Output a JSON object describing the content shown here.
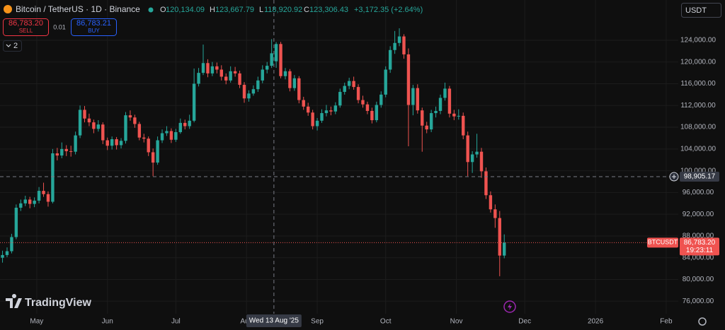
{
  "chart_data": {
    "type": "candlestick",
    "title": "Bitcoin / TetherUS · 1D · Binance",
    "legend": {
      "o_label": "O",
      "o": "120,134.09",
      "h_label": "H",
      "h": "123,667.79",
      "l_label": "L",
      "l": "118,920.92",
      "c_label": "C",
      "c": "123,306.43",
      "change": "+3,172.35 (+2.64%)"
    },
    "up_color": "#26a69a",
    "down_color": "#ef5350",
    "ylim": [
      73700,
      131400
    ],
    "yticks": [
      {
        "value": 76000,
        "label": "76,000.00"
      },
      {
        "value": 80000,
        "label": "80,000.00"
      },
      {
        "value": 84000,
        "label": "84,000.00"
      },
      {
        "value": 88000,
        "label": "88,000.00"
      },
      {
        "value": 92000,
        "label": "92,000.00"
      },
      {
        "value": 96000,
        "label": "96,000.00"
      },
      {
        "value": 100000,
        "label": "100,000.00"
      },
      {
        "value": 104000,
        "label": "104,000.00"
      },
      {
        "value": 108000,
        "label": "108,000.00"
      },
      {
        "value": 112000,
        "label": "112,000.00"
      },
      {
        "value": 116000,
        "label": "116,000.00"
      },
      {
        "value": 120000,
        "label": "120,000.00"
      },
      {
        "value": 124000,
        "label": "124,000.00"
      }
    ],
    "xlim": [
      -16.1,
      281.3
    ],
    "xticks": [
      {
        "value": 0,
        "label": "May"
      },
      {
        "value": 31,
        "label": "Jun"
      },
      {
        "value": 61,
        "label": "Jul"
      },
      {
        "value": 92,
        "label": "Aug"
      },
      {
        "value": 123,
        "label": "Sep"
      },
      {
        "value": 153,
        "label": "Oct"
      },
      {
        "value": 184,
        "label": "Nov"
      },
      {
        "value": 214,
        "label": "Dec"
      },
      {
        "value": 245,
        "label": "2026"
      },
      {
        "value": 276,
        "label": "Feb"
      }
    ],
    "x": [
      -15,
      -13,
      -11,
      -9,
      -7,
      -5,
      -3,
      -1,
      1,
      3,
      5,
      7,
      9,
      11,
      13,
      15,
      17,
      19,
      21,
      23,
      25,
      27,
      29,
      31,
      33,
      35,
      37,
      39,
      41,
      43,
      45,
      47,
      49,
      51,
      53,
      55,
      57,
      59,
      61,
      63,
      65,
      67,
      69,
      71,
      73,
      75,
      77,
      79,
      81,
      83,
      85,
      87,
      89,
      91,
      93,
      95,
      97,
      99,
      101,
      103,
      105,
      107,
      109,
      111,
      113,
      115,
      117,
      119,
      121,
      123,
      125,
      127,
      129,
      131,
      133,
      135,
      137,
      139,
      141,
      143,
      145,
      147,
      149,
      151,
      153,
      155,
      157,
      159,
      161,
      163,
      165,
      167,
      169,
      171,
      173,
      175,
      177,
      179,
      181,
      183,
      185,
      187,
      189,
      191,
      193,
      195,
      197,
      199,
      201,
      203,
      205
    ],
    "ohlc": [
      [
        84000,
        85300,
        83100,
        84500
      ],
      [
        84500,
        85900,
        84100,
        85200
      ],
      [
        85200,
        88400,
        84800,
        87800
      ],
      [
        87800,
        93800,
        87400,
        93200
      ],
      [
        93200,
        94700,
        92600,
        94000
      ],
      [
        94000,
        95400,
        93500,
        94700
      ],
      [
        94700,
        95200,
        93100,
        93900
      ],
      [
        93900,
        95100,
        93300,
        94500
      ],
      [
        94500,
        97000,
        94000,
        96300
      ],
      [
        96300,
        97800,
        95200,
        95700
      ],
      [
        95700,
        96200,
        93400,
        94300
      ],
      [
        94300,
        104000,
        94000,
        103200
      ],
      [
        103200,
        104200,
        101900,
        102800
      ],
      [
        102800,
        105200,
        102300,
        104000
      ],
      [
        104000,
        104700,
        102700,
        103600
      ],
      [
        103600,
        104600,
        102600,
        103500
      ],
      [
        103500,
        107200,
        103000,
        106500
      ],
      [
        106500,
        112000,
        106000,
        111200
      ],
      [
        111200,
        111900,
        108900,
        109600
      ],
      [
        109600,
        110500,
        108200,
        108900
      ],
      [
        108900,
        109400,
        106900,
        107700
      ],
      [
        107700,
        109300,
        107200,
        108500
      ],
      [
        108500,
        108900,
        104900,
        105600
      ],
      [
        105600,
        106100,
        103800,
        104600
      ],
      [
        104600,
        106300,
        103900,
        105800
      ],
      [
        105800,
        106200,
        103900,
        104700
      ],
      [
        104700,
        106000,
        104100,
        105500
      ],
      [
        105500,
        110800,
        105000,
        110200
      ],
      [
        110200,
        111100,
        109200,
        109800
      ],
      [
        109800,
        110300,
        107900,
        108600
      ],
      [
        108600,
        109000,
        105600,
        106100
      ],
      [
        106100,
        106800,
        105200,
        105900
      ],
      [
        105900,
        106300,
        102700,
        103400
      ],
      [
        103400,
        104100,
        99000,
        101500
      ],
      [
        101500,
        106300,
        101100,
        105600
      ],
      [
        105600,
        107600,
        105100,
        106900
      ],
      [
        106900,
        108200,
        106400,
        107300
      ],
      [
        107300,
        107800,
        105100,
        105700
      ],
      [
        105700,
        107700,
        105300,
        107100
      ],
      [
        107100,
        109600,
        106800,
        108800
      ],
      [
        108800,
        109400,
        107600,
        108200
      ],
      [
        108200,
        110300,
        107700,
        109200
      ],
      [
        109200,
        118800,
        108900,
        116000
      ],
      [
        116000,
        118900,
        115500,
        118000
      ],
      [
        118000,
        123200,
        117600,
        119800
      ],
      [
        119800,
        120500,
        117200,
        117900
      ],
      [
        117900,
        120000,
        117400,
        119200
      ],
      [
        119200,
        119900,
        117900,
        118600
      ],
      [
        118600,
        119400,
        116600,
        117300
      ],
      [
        117300,
        117900,
        115900,
        116600
      ],
      [
        116600,
        119200,
        116200,
        118300
      ],
      [
        118300,
        119100,
        117300,
        117900
      ],
      [
        117900,
        118400,
        115200,
        115800
      ],
      [
        115800,
        116300,
        112500,
        113300
      ],
      [
        113300,
        114800,
        112700,
        114200
      ],
      [
        114200,
        115700,
        113800,
        115000
      ],
      [
        115000,
        117300,
        114500,
        116600
      ],
      [
        116600,
        119400,
        116100,
        118600
      ],
      [
        118600,
        120000,
        117900,
        119300
      ],
      [
        119300,
        124200,
        118900,
        121600
      ],
      [
        120134.09,
        123667.79,
        118920.92,
        123306.43
      ],
      [
        123306.43,
        123700,
        117000,
        117400
      ],
      [
        117400,
        118900,
        116800,
        118300
      ],
      [
        118300,
        118700,
        114600,
        115200
      ],
      [
        115200,
        117600,
        114700,
        117000
      ],
      [
        117000,
        117400,
        112400,
        113000
      ],
      [
        113000,
        113600,
        111200,
        111800
      ],
      [
        111800,
        112500,
        110100,
        110700
      ],
      [
        110700,
        111200,
        107600,
        108200
      ],
      [
        108200,
        109700,
        107400,
        109200
      ],
      [
        109200,
        111300,
        108800,
        110600
      ],
      [
        110600,
        112100,
        110000,
        111100
      ],
      [
        111100,
        111800,
        110200,
        110900
      ],
      [
        110900,
        112600,
        110400,
        112000
      ],
      [
        112000,
        115100,
        111600,
        114500
      ],
      [
        114500,
        116200,
        114000,
        115600
      ],
      [
        115600,
        117100,
        115000,
        116500
      ],
      [
        116500,
        117300,
        114900,
        115400
      ],
      [
        115400,
        115900,
        112400,
        113000
      ],
      [
        113000,
        113800,
        111600,
        112200
      ],
      [
        112200,
        112700,
        110400,
        111000
      ],
      [
        111000,
        111600,
        108700,
        109300
      ],
      [
        109300,
        112700,
        108900,
        112100
      ],
      [
        112100,
        114600,
        111600,
        114000
      ],
      [
        114000,
        119200,
        113500,
        118600
      ],
      [
        118600,
        122900,
        118000,
        122200
      ],
      [
        122200,
        125700,
        121500,
        123500
      ],
      [
        123500,
        126200,
        122900,
        124700
      ],
      [
        124700,
        125100,
        120600,
        121400
      ],
      [
        121400,
        122500,
        104500,
        112100
      ],
      [
        112100,
        115800,
        110200,
        115200
      ],
      [
        115200,
        115900,
        110500,
        111100
      ],
      [
        111100,
        111600,
        103500,
        108300
      ],
      [
        108300,
        109000,
        106900,
        107600
      ],
      [
        107600,
        111200,
        107100,
        110600
      ],
      [
        110600,
        111800,
        109800,
        111000
      ],
      [
        111000,
        114000,
        110400,
        113400
      ],
      [
        113400,
        116200,
        112900,
        115100
      ],
      [
        115100,
        115600,
        109800,
        110500
      ],
      [
        110500,
        111200,
        109300,
        110000
      ],
      [
        110000,
        111300,
        109400,
        110100
      ],
      [
        110100,
        110700,
        105800,
        106500
      ],
      [
        106500,
        107200,
        99000,
        101600
      ],
      [
        101600,
        103600,
        99600,
        103000
      ],
      [
        103000,
        106800,
        102400,
        103500
      ],
      [
        103500,
        104200,
        98700,
        99900
      ],
      [
        99900,
        100600,
        94800,
        95500
      ],
      [
        95500,
        96200,
        92300,
        92900
      ],
      [
        92900,
        93800,
        89500,
        91300
      ],
      [
        91300,
        92600,
        80600,
        84400
      ],
      [
        84400,
        88300,
        83900,
        86783.2
      ]
    ],
    "crosshair": {
      "price": 98905.17,
      "price_label": "98,905.17",
      "x": 104,
      "date_label": "Wed 13 Aug '25"
    },
    "last_price": {
      "symbol": "BTCUSDT",
      "value": 86783.2,
      "label": "86,783.20",
      "countdown": "19:23:11"
    }
  },
  "ui": {
    "sell_price": "86,783.20",
    "sell": "SELL",
    "spread": "0.01",
    "buy_price": "86,783.21",
    "buy": "BUY",
    "indicators": "2",
    "currency": "USDT",
    "logo": "TradingView"
  }
}
